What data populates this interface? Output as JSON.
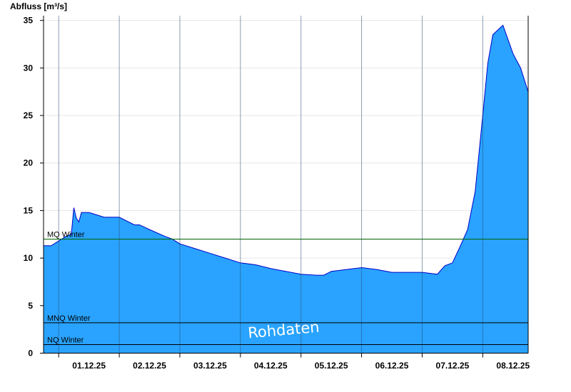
{
  "chart_data": {
    "type": "area",
    "ylabel": "Abfluss [m³/s]",
    "ylim": [
      0,
      35.5
    ],
    "yticks": [
      0,
      5,
      10,
      15,
      20,
      25,
      30,
      35
    ],
    "x_range_days": [
      "30.11.25 18:00",
      "08.12.25 18:00"
    ],
    "x_tick_labels": [
      "01.12.25",
      "02.12.25",
      "03.12.25",
      "04.12.25",
      "05.12.25",
      "06.12.25",
      "07.12.25",
      "08.12.25"
    ],
    "series": [
      {
        "name": "",
        "color": "#29a3ff",
        "line_color": "#0000c8",
        "x": [
          "30.11.25 18:00",
          "30.11.25 21:00",
          "01.12.25 00:00",
          "01.12.25 03:00",
          "01.12.25 05:00",
          "01.12.25 06:00",
          "01.12.25 07:00",
          "01.12.25 08:00",
          "01.12.25 09:00",
          "01.12.25 12:00",
          "01.12.25 18:00",
          "02.12.25 00:00",
          "02.12.25 06:00",
          "02.12.25 08:00",
          "02.12.25 12:00",
          "02.12.25 18:00",
          "02.12.25 21:00",
          "03.12.25 00:00",
          "03.12.25 06:00",
          "03.12.25 12:00",
          "03.12.25 18:00",
          "04.12.25 00:00",
          "04.12.25 06:00",
          "04.12.25 12:00",
          "04.12.25 18:00",
          "05.12.25 00:00",
          "05.12.25 06:00",
          "05.12.25 09:00",
          "05.12.25 12:00",
          "05.12.25 18:00",
          "06.12.25 00:00",
          "06.12.25 06:00",
          "06.12.25 12:00",
          "06.12.25 18:00",
          "07.12.25 00:00",
          "07.12.25 06:00",
          "07.12.25 09:00",
          "07.12.25 12:00",
          "07.12.25 15:00",
          "07.12.25 18:00",
          "07.12.25 21:00",
          "08.12.25 00:00",
          "08.12.25 02:00",
          "08.12.25 04:00",
          "08.12.25 06:00",
          "08.12.25 08:00",
          "08.12.25 10:00",
          "08.12.25 12:00",
          "08.12.25 15:00",
          "08.12.25 18:00"
        ],
        "values": [
          11.3,
          11.3,
          11.8,
          12.3,
          12.5,
          15.3,
          14.2,
          13.8,
          14.8,
          14.8,
          14.3,
          14.3,
          13.5,
          13.5,
          13.0,
          12.3,
          12.0,
          11.5,
          11.0,
          10.5,
          10.0,
          9.5,
          9.3,
          8.9,
          8.6,
          8.3,
          8.2,
          8.2,
          8.6,
          8.8,
          9.0,
          8.8,
          8.5,
          8.5,
          8.5,
          8.3,
          9.2,
          9.5,
          11.2,
          13.0,
          17.0,
          25.0,
          30.5,
          33.5,
          34.0,
          34.5,
          33.0,
          31.5,
          30.0,
          27.5
        ]
      }
    ],
    "reference_lines": [
      {
        "label": "MQ Winter",
        "value": 12.0,
        "color": "#006400"
      },
      {
        "label": "MNQ Winter",
        "value": 3.2,
        "color": "#000000"
      },
      {
        "label": "NQ Winter",
        "value": 0.9,
        "color": "#000000"
      }
    ],
    "watermark": "Rohdaten",
    "grid": true
  }
}
